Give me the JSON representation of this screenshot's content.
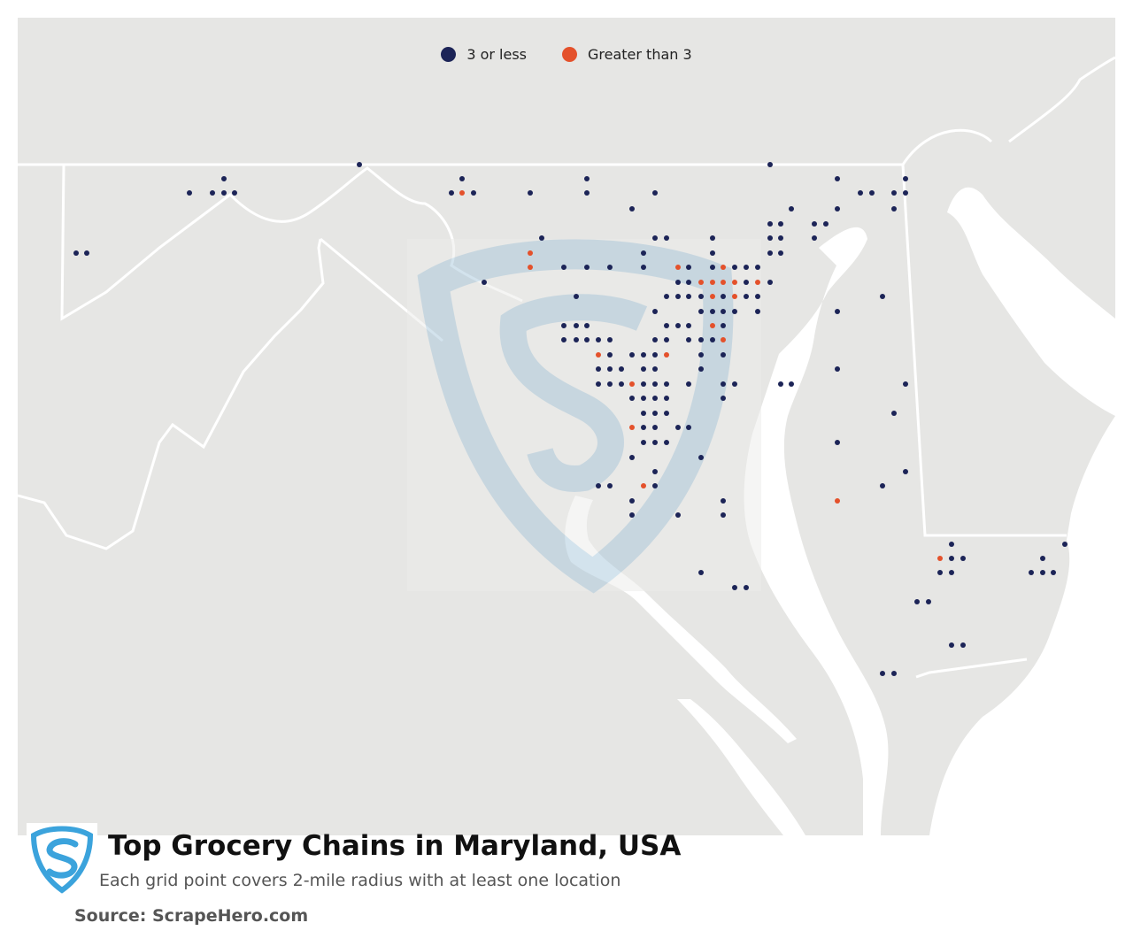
{
  "legend": {
    "items": [
      {
        "label": "3 or less",
        "color": "#1c2457"
      },
      {
        "label": "Greater than 3",
        "color": "#e4512b"
      }
    ]
  },
  "footer": {
    "title": "Top Grocery Chains in Maryland, USA",
    "subtitle": "Each grid point covers 2-mile radius with at least one location",
    "source": "Source: ScrapeHero.com"
  },
  "colors": {
    "land": "#e6e6e4",
    "water": "#ffffff",
    "border": "#ffffff",
    "low": "#1c2457",
    "high": "#e4512b",
    "watermark": "#a9c8dc"
  }
}
